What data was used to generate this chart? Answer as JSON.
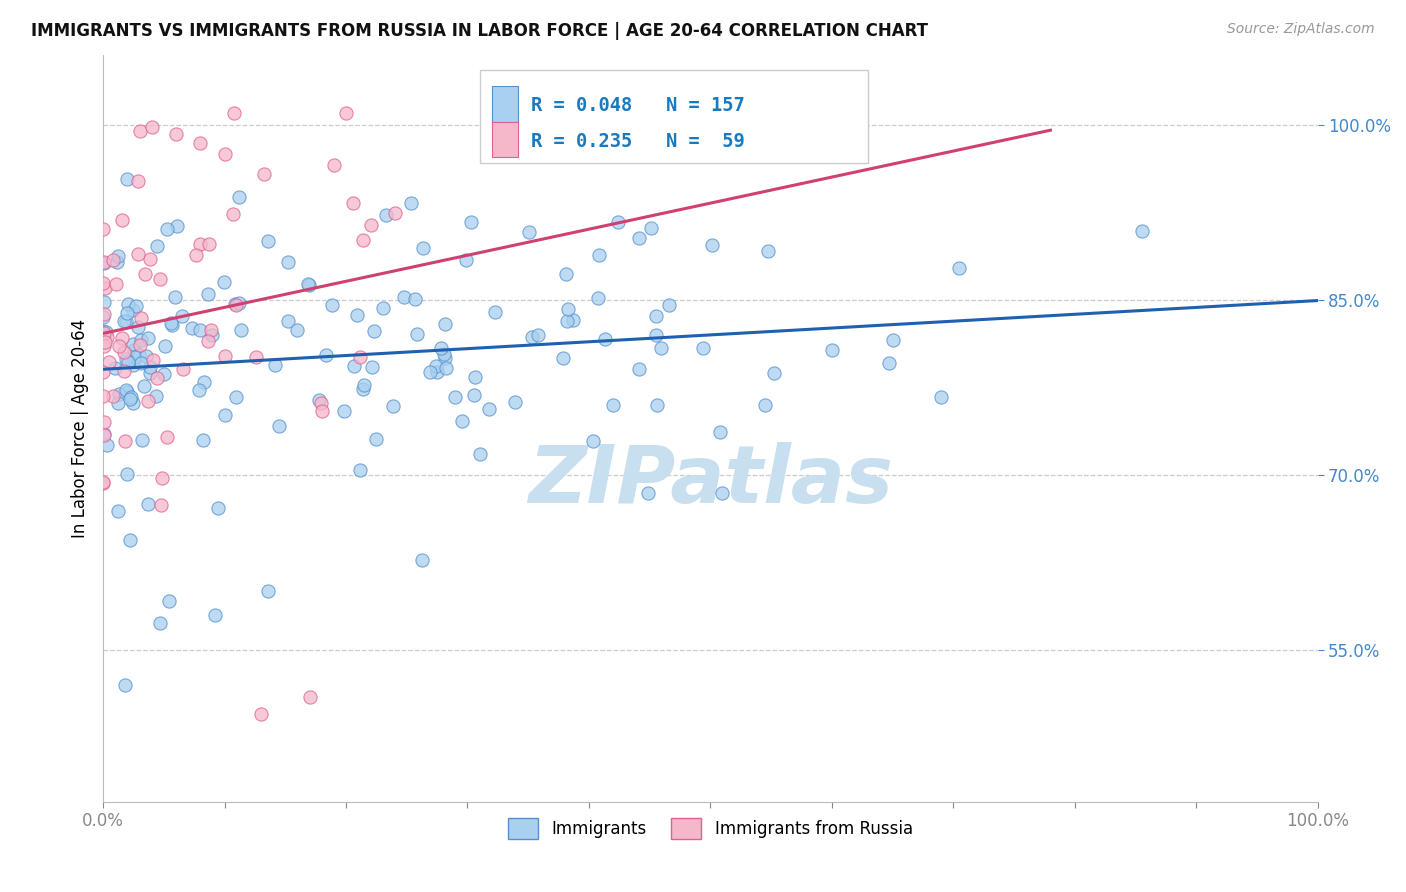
{
  "title": "IMMIGRANTS VS IMMIGRANTS FROM RUSSIA IN LABOR FORCE | AGE 20-64 CORRELATION CHART",
  "source": "Source: ZipAtlas.com",
  "ylabel": "In Labor Force | Age 20-64",
  "xlim": [
    0.0,
    1.0
  ],
  "ylim": [
    0.42,
    1.06
  ],
  "yticks": [
    0.55,
    0.7,
    0.85,
    1.0
  ],
  "ytick_labels": [
    "55.0%",
    "70.0%",
    "85.0%",
    "100.0%"
  ],
  "xtick_labels": [
    "0.0%",
    "100.0%"
  ],
  "blue_R": 0.048,
  "blue_N": 157,
  "pink_R": 0.235,
  "pink_N": 59,
  "blue_fill": "#a8d0f0",
  "blue_edge": "#5590cc",
  "pink_fill": "#f5b8cb",
  "pink_edge": "#e06090",
  "blue_line_color": "#2060b0",
  "pink_line_color": "#d04070",
  "legend_text_color": "#1a7abf",
  "ytick_color": "#4488cc",
  "title_fontsize": 12,
  "source_fontsize": 10,
  "watermark_text": "ZIPatlas",
  "watermark_color": "#c8dff0",
  "background_color": "#ffffff",
  "grid_color": "#cccccc",
  "seed": 77
}
